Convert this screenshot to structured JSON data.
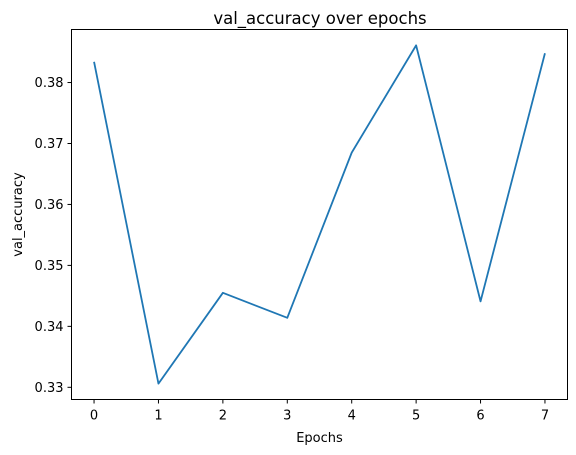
{
  "chart_data": {
    "type": "line",
    "title": "val_accuracy over epochs",
    "xlabel": "Epochs",
    "ylabel": "val_accuracy",
    "x": [
      0,
      1,
      2,
      3,
      4,
      5,
      6,
      7
    ],
    "series": [
      {
        "values": [
          0.3834,
          0.3306,
          0.3455,
          0.3414,
          0.3685,
          0.3861,
          0.3441,
          0.3848
        ],
        "color": "#1f77b4"
      }
    ],
    "xticks": [
      "0",
      "1",
      "2",
      "3",
      "4",
      "5",
      "6",
      "7"
    ],
    "yticks": [
      "0.33",
      "0.34",
      "0.35",
      "0.36",
      "0.37",
      "0.38"
    ],
    "xlim": [
      -0.35,
      7.35
    ],
    "ylim": [
      0.328,
      0.3887
    ],
    "grid": false,
    "legend": "none"
  }
}
